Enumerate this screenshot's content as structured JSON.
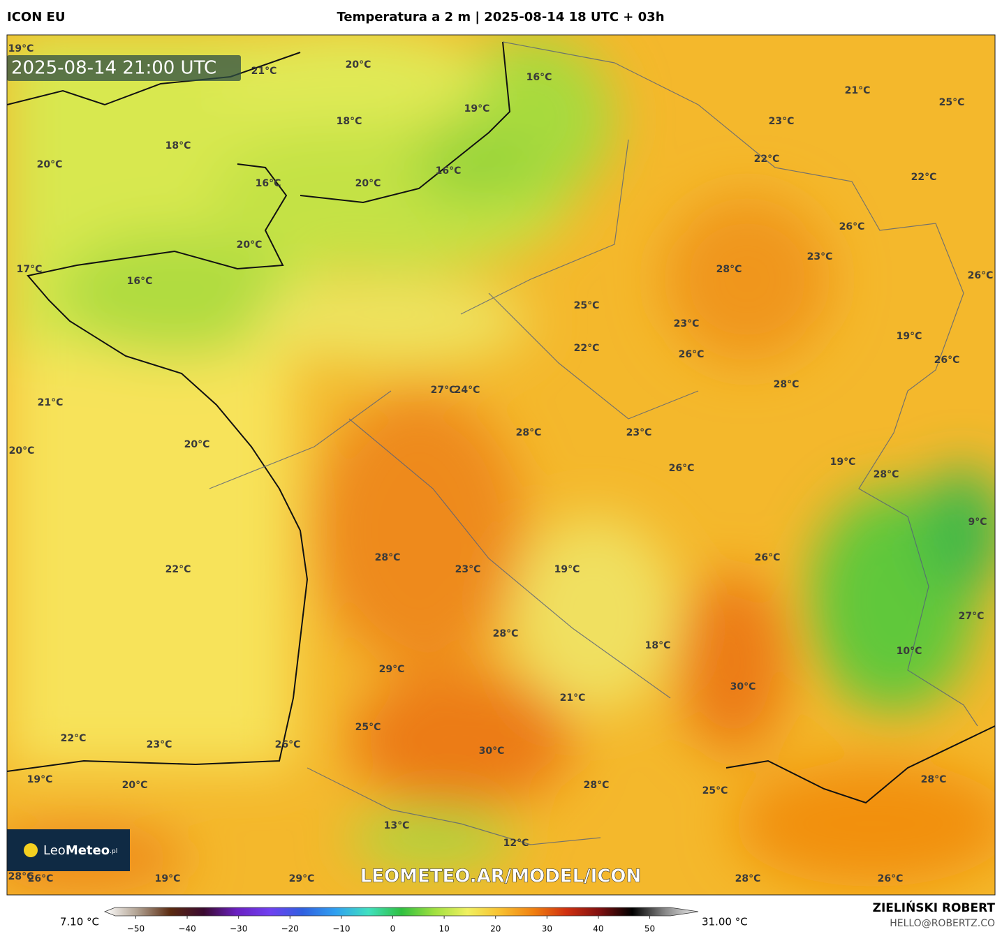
{
  "header": {
    "model": "ICON EU",
    "title": "Temperatura a 2 m | 2025-08-14 18 UTC + 03h"
  },
  "map": {
    "valid_time": "2025-08-14 21:00 UTC",
    "labels": [
      "19°C",
      "21°C",
      "20°C",
      "16°C",
      "21°C",
      "25°C",
      "19°C",
      "18°C",
      "23°C",
      "18°C",
      "20°C",
      "22°C",
      "16°C",
      "22°C",
      "16°C",
      "20°C",
      "26°C",
      "20°C",
      "23°C",
      "17°C",
      "28°C",
      "26°C",
      "16°C",
      "25°C",
      "23°C",
      "19°C",
      "22°C",
      "26°C",
      "26°C",
      "28°C",
      "27°C",
      "24°C",
      "21°C",
      "28°C",
      "23°C",
      "20°C",
      "20°C",
      "19°C",
      "26°C",
      "28°C",
      "9°C",
      "28°C",
      "26°C",
      "22°C",
      "23°C",
      "19°C",
      "27°C",
      "28°C",
      "18°C",
      "10°C",
      "29°C",
      "30°C",
      "21°C",
      "25°C",
      "22°C",
      "23°C",
      "26°C",
      "30°C",
      "19°C",
      "20°C",
      "28°C",
      "28°C",
      "25°C",
      "13°C",
      "12°C",
      "28°C",
      "26°C",
      "19°C",
      "29°C",
      "28°C",
      "26°C"
    ],
    "watermark": "LEOMETEO.AR/MODEL/ICON",
    "logo": {
      "name_light": "Leo",
      "name_bold": "Meteo",
      "suffix": ".pl"
    }
  },
  "colorbar": {
    "min_label": "7.10 °C",
    "max_label": "31.00 °C",
    "lim": [
      -54,
      54
    ],
    "ticks": [
      {
        "value": -50,
        "label": "−50"
      },
      {
        "value": -40,
        "label": "−40"
      },
      {
        "value": -30,
        "label": "−30"
      },
      {
        "value": -20,
        "label": "−20"
      },
      {
        "value": -10,
        "label": "−10"
      },
      0,
      10,
      20,
      30,
      40,
      50
    ],
    "colors": [
      "#ffffff",
      "#b0a090",
      "#5a2a10",
      "#3a0a30",
      "#6a20c0",
      "#7040f0",
      "#3060e0",
      "#30a0f0",
      "#40e0c0",
      "#30c040",
      "#a0e040",
      "#f0f060",
      "#f8c030",
      "#f08010",
      "#d03010",
      "#801010",
      "#000000",
      "#888888",
      "#f0f0f0"
    ]
  },
  "footer": {
    "author": "ZIELIŃSKI ROBERT",
    "contact": "HELLO@ROBERTZ.CO"
  }
}
